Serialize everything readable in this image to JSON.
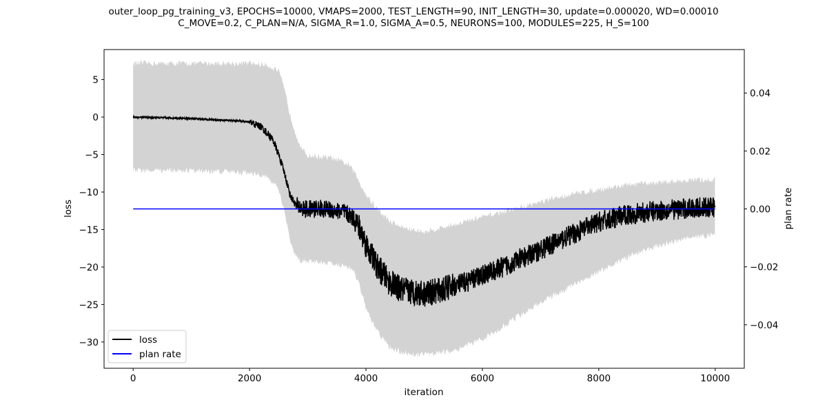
{
  "figure": {
    "title_line1": "outer_loop_pg_training_v3, EPOCHS=10000, VMAPS=2000, TEST_LENGTH=90, INIT_LENGTH=30, update=0.000020, WD=0.00010",
    "title_line2": "C_MOVE=0.2, C_PLAN=N/A, SIGMA_R=1.0, SIGMA_A=0.5, NEURONS=100, MODULES=225, H_S=100"
  },
  "chart_data": {
    "type": "line",
    "title": "outer_loop_pg_training_v3, EPOCHS=10000, VMAPS=2000, TEST_LENGTH=90, INIT_LENGTH=30, update=0.000020, WD=0.00010 / C_MOVE=0.2, C_PLAN=N/A, SIGMA_R=1.0, SIGMA_A=0.5, NEURONS=100, MODULES=225, H_S=100",
    "xlabel": "iteration",
    "ylabel": "loss",
    "y2label": "plan rate",
    "xlim": [
      -500,
      10500
    ],
    "ylim": [
      -33.5,
      9.0
    ],
    "y2lim": [
      -0.055,
      0.055
    ],
    "xticks": [
      0,
      2000,
      4000,
      6000,
      8000,
      10000
    ],
    "yticks": [
      5,
      0,
      -5,
      -10,
      -15,
      -20,
      -25,
      -30
    ],
    "y2ticks": [
      0.04,
      0.02,
      0.0,
      -0.02,
      -0.04
    ],
    "ytick_labels": [
      "5",
      "0",
      "−5",
      "−10",
      "−15",
      "−20",
      "−25",
      "−30"
    ],
    "y2tick_labels": [
      "0.04",
      "0.02",
      "0.00",
      "−0.02",
      "−0.04"
    ],
    "legend": {
      "position": "lower-left",
      "entries": [
        "loss",
        "plan rate"
      ]
    },
    "grid": false,
    "colors": {
      "loss": "#000000",
      "plan_rate": "#0000ff",
      "band": "#d3d3d3"
    },
    "series": [
      {
        "name": "loss",
        "axis": "left",
        "x": [
          0,
          500,
          1000,
          1500,
          1800,
          2000,
          2200,
          2400,
          2500,
          2600,
          2700,
          2800,
          2900,
          3000,
          3200,
          3400,
          3600,
          3800,
          3900,
          4000,
          4100,
          4200,
          4400,
          4600,
          4800,
          5000,
          5200,
          5400,
          5600,
          5800,
          6000,
          6200,
          6500,
          7000,
          7500,
          8000,
          8500,
          9000,
          9500,
          10000
        ],
        "y": [
          0.0,
          -0.1,
          -0.2,
          -0.4,
          -0.5,
          -0.7,
          -1.3,
          -3.0,
          -5.0,
          -7.5,
          -10.5,
          -11.8,
          -12.2,
          -12.3,
          -12.2,
          -12.4,
          -12.6,
          -13.5,
          -15.0,
          -17.0,
          -18.5,
          -20.0,
          -22.0,
          -23.0,
          -23.3,
          -23.5,
          -23.3,
          -22.8,
          -22.3,
          -21.8,
          -21.0,
          -20.5,
          -19.5,
          -17.7,
          -15.8,
          -14.0,
          -13.0,
          -12.5,
          -12.2,
          -12.0
        ]
      },
      {
        "name": "plan rate",
        "axis": "right",
        "x": [
          0,
          10000
        ],
        "y": [
          0.0,
          0.0
        ]
      }
    ],
    "band": {
      "axis": "left",
      "x": [
        0,
        500,
        1000,
        1500,
        2000,
        2300,
        2500,
        2600,
        2700,
        2800,
        2900,
        3000,
        3400,
        3700,
        3800,
        3900,
        4000,
        4200,
        4400,
        4600,
        4800,
        5000,
        5500,
        6000,
        6500,
        7000,
        7500,
        8000,
        8500,
        9000,
        9500,
        10000
      ],
      "upper": [
        7.0,
        7.0,
        7.0,
        7.0,
        7.0,
        6.8,
        6.0,
        3.5,
        0.0,
        -2.5,
        -4.5,
        -5.3,
        -5.6,
        -6.5,
        -7.5,
        -9.0,
        -10.5,
        -12.5,
        -14.0,
        -14.8,
        -15.2,
        -15.5,
        -14.5,
        -13.5,
        -12.5,
        -11.5,
        -10.5,
        -9.8,
        -9.2,
        -8.9,
        -8.6,
        -8.5
      ],
      "lower": [
        -7.0,
        -7.0,
        -7.0,
        -7.1,
        -7.3,
        -7.8,
        -9.5,
        -12.5,
        -16.5,
        -18.5,
        -19.0,
        -19.0,
        -19.3,
        -19.8,
        -20.5,
        -22.5,
        -25.5,
        -28.5,
        -30.5,
        -31.2,
        -31.5,
        -31.5,
        -31.0,
        -29.5,
        -27.0,
        -24.5,
        -22.5,
        -20.5,
        -18.5,
        -17.0,
        -16.0,
        -15.5
      ]
    }
  }
}
